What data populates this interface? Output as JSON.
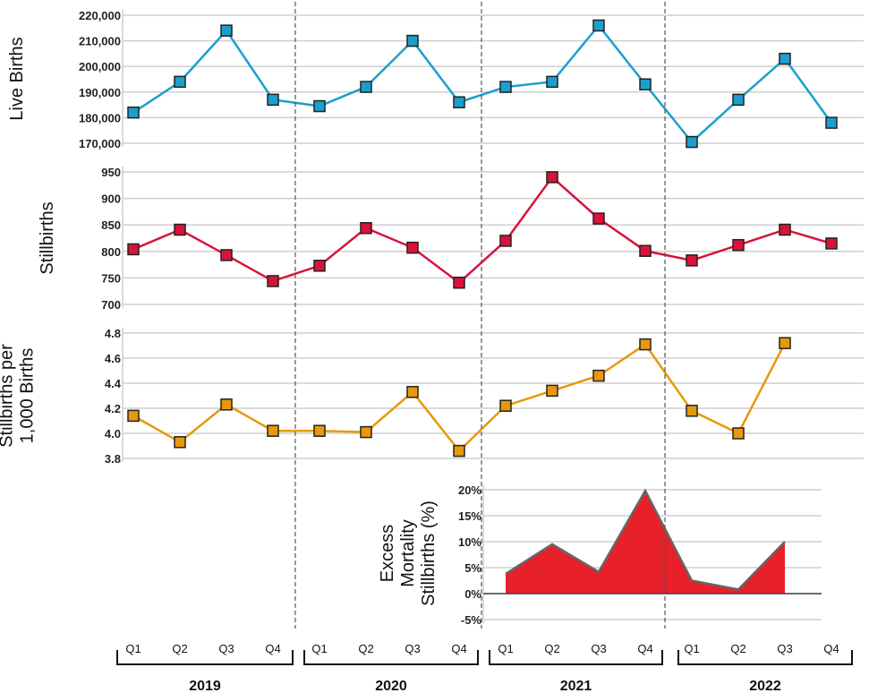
{
  "chart_data": [
    {
      "type": "line",
      "ylabel": "Live Births",
      "ylim": [
        170000,
        220000
      ],
      "yticks": [
        "220,000",
        "210,000",
        "200,000",
        "190,000",
        "180,000",
        "170,000"
      ],
      "color": "#1a9fce",
      "values": [
        182000,
        194000,
        214000,
        187000,
        184500,
        192000,
        210000,
        186000,
        192000,
        194000,
        216000,
        193000,
        170500,
        187000,
        203000,
        178000
      ]
    },
    {
      "type": "line",
      "ylabel": "Stillbirths",
      "ylim": [
        700,
        950
      ],
      "yticks": [
        "950",
        "900",
        "850",
        "800",
        "750",
        "700"
      ],
      "color": "#d8133a",
      "values": [
        804,
        841,
        793,
        744,
        773,
        844,
        807,
        741,
        820,
        940,
        862,
        801,
        783,
        812,
        841,
        815
      ]
    },
    {
      "type": "line",
      "ylabel": "Stillbirths per 1,000 Births",
      "ylabel_lines": [
        "Stillbirths per",
        "1,000 Births"
      ],
      "ylim": [
        3.8,
        4.8
      ],
      "yticks": [
        "4.8",
        "4.6",
        "4.4",
        "4.2",
        "4.0",
        "3.8"
      ],
      "color": "#e8980c",
      "values": [
        4.14,
        3.93,
        4.23,
        4.02,
        4.02,
        4.01,
        4.33,
        3.86,
        4.22,
        4.34,
        4.46,
        4.71,
        4.18,
        4.0,
        4.72,
        null
      ]
    },
    {
      "type": "area",
      "ylabel": "Excess Mortality Stillbirths (%)",
      "ylabel_lines": [
        "Excess",
        "Mortality",
        "Stillbirths (%)"
      ],
      "ylim": [
        -5,
        20
      ],
      "yticks": [
        "20%",
        "15%",
        "10%",
        "5%",
        "0%",
        "-5%"
      ],
      "color": "#e8202a",
      "values": [
        null,
        null,
        null,
        null,
        null,
        null,
        null,
        null,
        3.8,
        9.5,
        4.2,
        19.8,
        2.5,
        0.8,
        10.0,
        null
      ]
    }
  ],
  "x_axis": {
    "quarters": [
      "Q1",
      "Q2",
      "Q3",
      "Q4",
      "Q1",
      "Q2",
      "Q3",
      "Q4",
      "Q1",
      "Q2",
      "Q3",
      "Q4",
      "Q1",
      "Q2",
      "Q3",
      "Q4"
    ],
    "years": [
      "2019",
      "2020",
      "2021",
      "2022"
    ]
  }
}
